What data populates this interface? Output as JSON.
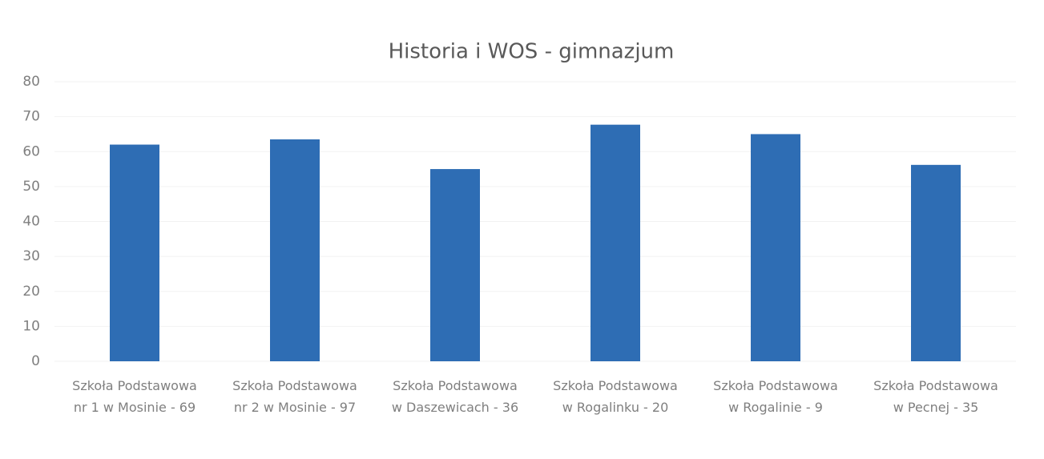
{
  "chart_data": {
    "type": "bar",
    "title": "Historia i WOS - gimnazjum",
    "categories": [
      "Szkoła Podstawowa\nnr 1 w Mosinie - 69",
      "Szkoła Podstawowa\nnr 2 w Mosinie - 97",
      "Szkoła Podstawowa\nw Daszewicach - 36",
      "Szkoła Podstawowa\nw Rogalinku - 20",
      "Szkoła Podstawowa\nw Rogalinie - 9",
      "Szkoła Podstawowa\nw Pecnej - 35"
    ],
    "values": [
      62,
      63.5,
      55,
      67.7,
      65,
      56.2
    ],
    "color": "#2e6db4",
    "ylim": [
      0,
      80
    ],
    "yticks": [
      0,
      10,
      20,
      30,
      40,
      50,
      60,
      70,
      80
    ],
    "grid": true
  }
}
